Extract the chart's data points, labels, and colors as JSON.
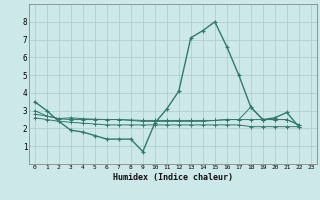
{
  "xlabel": "Humidex (Indice chaleur)",
  "background_color": "#cce8e8",
  "grid_color": "#aacccc",
  "line_color": "#2e7b6e",
  "xlim": [
    -0.5,
    23.5
  ],
  "ylim": [
    0,
    9
  ],
  "xticks": [
    0,
    1,
    2,
    3,
    4,
    5,
    6,
    7,
    8,
    9,
    10,
    11,
    12,
    13,
    14,
    15,
    16,
    17,
    18,
    19,
    20,
    21,
    22,
    23
  ],
  "yticks": [
    1,
    2,
    3,
    4,
    5,
    6,
    7,
    8
  ],
  "series1_x": [
    0,
    1,
    2,
    3,
    4,
    5,
    6,
    7,
    8,
    9,
    10,
    11,
    12,
    13,
    14,
    15,
    16,
    17,
    18,
    19,
    20,
    21,
    22
  ],
  "series1_y": [
    3.5,
    3.0,
    2.4,
    1.9,
    1.8,
    1.6,
    1.4,
    1.4,
    1.4,
    0.7,
    2.3,
    3.1,
    4.1,
    7.1,
    7.5,
    8.0,
    6.6,
    5.0,
    3.2,
    2.5,
    2.6,
    2.9,
    2.1
  ],
  "series2_x": [
    0,
    1,
    2,
    3,
    4,
    5,
    6,
    7,
    8,
    9,
    10,
    11,
    12,
    13,
    14,
    15,
    16,
    17,
    18,
    19,
    20,
    21,
    22
  ],
  "series2_y": [
    3.0,
    2.7,
    2.55,
    2.5,
    2.5,
    2.5,
    2.5,
    2.5,
    2.45,
    2.4,
    2.4,
    2.4,
    2.4,
    2.4,
    2.4,
    2.45,
    2.5,
    2.5,
    2.5,
    2.5,
    2.5,
    2.5,
    2.2
  ],
  "series3_x": [
    0,
    1,
    2,
    3,
    4,
    5,
    6,
    7,
    8,
    9,
    10,
    11,
    12,
    13,
    14,
    15,
    16,
    17,
    18,
    19,
    20,
    21,
    22
  ],
  "series3_y": [
    2.6,
    2.5,
    2.4,
    2.35,
    2.3,
    2.25,
    2.2,
    2.2,
    2.2,
    2.2,
    2.2,
    2.2,
    2.2,
    2.2,
    2.2,
    2.2,
    2.2,
    2.2,
    2.1,
    2.1,
    2.1,
    2.1,
    2.1
  ],
  "series4_x": [
    0,
    1,
    2,
    3,
    4,
    5,
    6,
    7,
    8,
    9,
    10,
    11,
    12,
    13,
    14,
    15,
    16,
    17,
    18,
    19,
    20,
    21,
    22
  ],
  "series4_y": [
    2.8,
    2.7,
    2.55,
    2.6,
    2.55,
    2.52,
    2.5,
    2.5,
    2.48,
    2.45,
    2.45,
    2.45,
    2.45,
    2.45,
    2.45,
    2.45,
    2.5,
    2.5,
    3.2,
    2.5,
    2.5,
    2.5,
    2.2
  ]
}
